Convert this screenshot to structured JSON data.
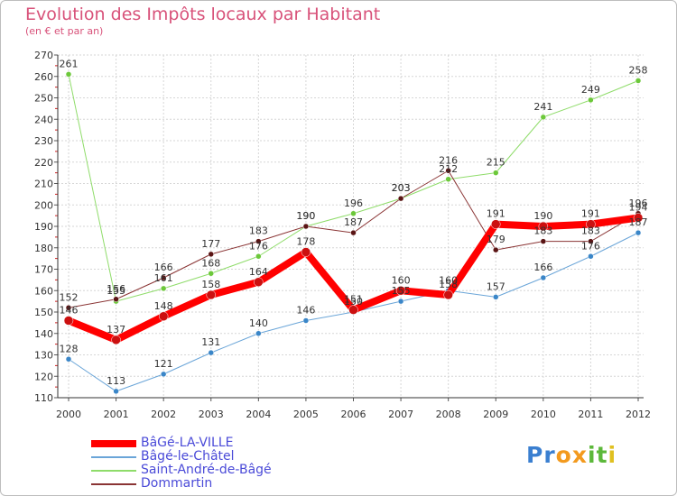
{
  "title": "Evolution des Impôts locaux par Habitant",
  "subtitle": "(en € et par an)",
  "logo": {
    "text": "Proxiti",
    "letters": [
      "P",
      "r",
      "o",
      "x",
      "i",
      "t",
      "i"
    ],
    "colors": [
      "#3a7fd0",
      "#3a7fd0",
      "#f39a1e",
      "#f39a1e",
      "#5cb83a",
      "#5cb83a",
      "#e0c020"
    ]
  },
  "chart_data": {
    "type": "line",
    "title": "Evolution des Impôts locaux par Habitant",
    "subtitle": "(en € et par an)",
    "xlabel": "",
    "ylabel": "",
    "x": [
      "2000",
      "2001",
      "2002",
      "2003",
      "2004",
      "2005",
      "2006",
      "2007",
      "2008",
      "2009",
      "2010",
      "2011",
      "2012"
    ],
    "ylim": [
      110,
      270
    ],
    "yticks": [
      110,
      120,
      130,
      140,
      150,
      160,
      170,
      180,
      190,
      200,
      210,
      220,
      230,
      240,
      250,
      260,
      270
    ],
    "grid": true,
    "legend_position": "bottom-left",
    "series": [
      {
        "name": "BâGé-LA-VILLE",
        "color": "#ff0000",
        "marker": "#cc1010",
        "width": 8,
        "values": [
          146,
          137,
          148,
          158,
          164,
          178,
          151,
          160,
          158,
          191,
          190,
          191,
          194
        ],
        "labels": [
          "146",
          "137",
          "148",
          "158",
          "164",
          "178",
          "151",
          "160",
          "158",
          "191",
          "190",
          "191",
          "194"
        ]
      },
      {
        "name": "Bâgé-le-Châtel",
        "color": "#6aa5d8",
        "marker": "#3a86c8",
        "width": 1,
        "values": [
          128,
          113,
          121,
          131,
          140,
          146,
          150,
          155,
          160,
          157,
          166,
          176,
          187
        ],
        "labels": [
          "128",
          "113",
          "121",
          "131",
          "140",
          "146",
          "150",
          "155",
          "160",
          "157",
          "166",
          "176",
          "187"
        ]
      },
      {
        "name": "Saint-André-de-Bâgé",
        "color": "#8fdc6a",
        "marker": "#6cc83a",
        "width": 1,
        "values": [
          261,
          155,
          161,
          168,
          176,
          190,
          196,
          203,
          212,
          215,
          241,
          249,
          258
        ],
        "labels": [
          "261",
          "155",
          "161",
          "168",
          "176",
          "190",
          "196",
          "203",
          "212",
          "215",
          "241",
          "249",
          "258"
        ]
      },
      {
        "name": "Dommartin",
        "color": "#8a3434",
        "marker": "#5a1414",
        "width": 1,
        "values": [
          152,
          156,
          166,
          177,
          183,
          190,
          187,
          203,
          216,
          179,
          183,
          183,
          196
        ],
        "labels": [
          "152",
          "156",
          "166",
          "177",
          "183",
          "190",
          "187",
          "203",
          "216",
          "179",
          "183",
          "183",
          "196"
        ]
      }
    ]
  }
}
